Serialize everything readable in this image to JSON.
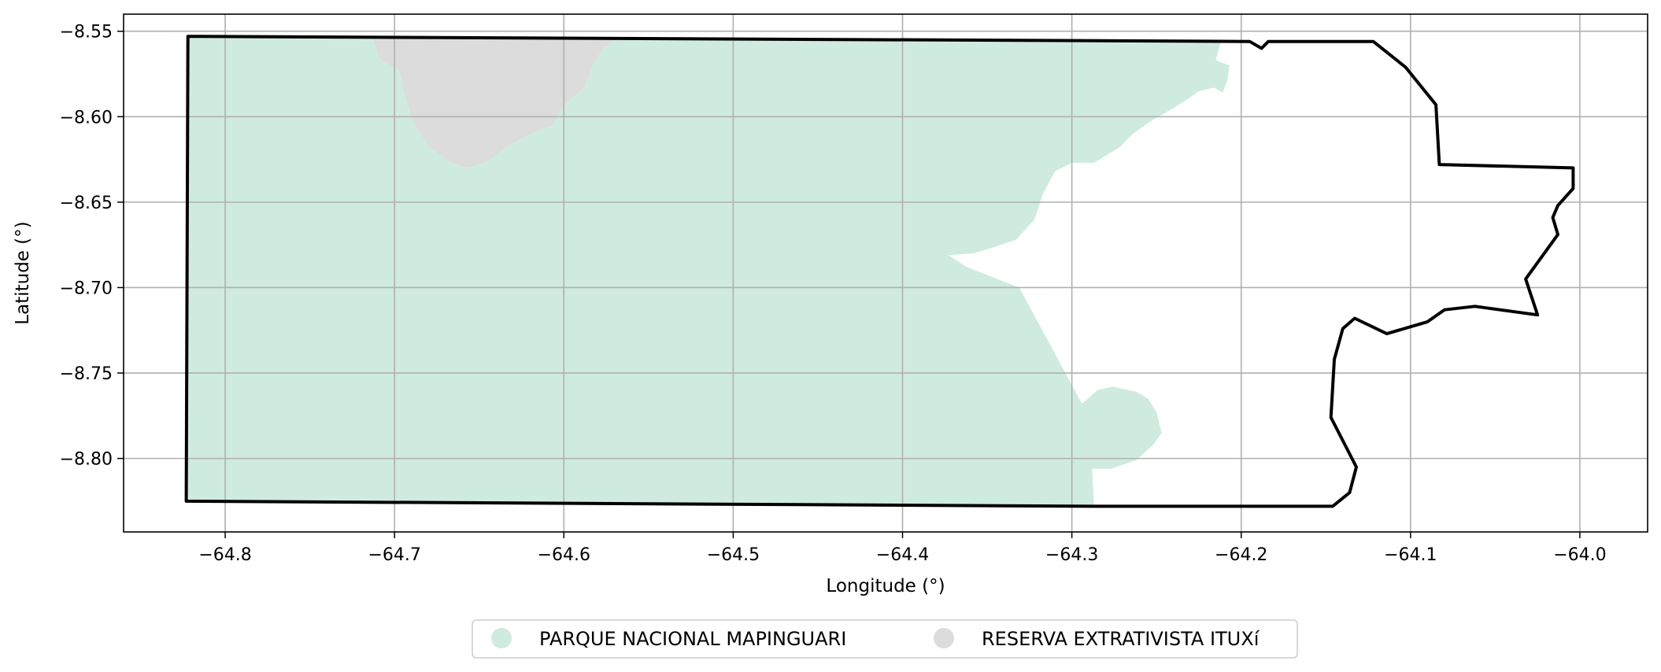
{
  "map": {
    "xlabel": "Longitude (°)",
    "ylabel": "Latitude (°)",
    "xlim": [
      -64.86,
      -63.96
    ],
    "ylim": [
      -8.843,
      -8.54
    ],
    "x_ticks": [
      -64.8,
      -64.7,
      -64.6,
      -64.5,
      -64.4,
      -64.3,
      -64.2,
      -64.1,
      -64.0
    ],
    "x_tick_labels": [
      "−64.8",
      "−64.7",
      "−64.6",
      "−64.5",
      "−64.4",
      "−64.3",
      "−64.2",
      "−64.1",
      "−64.0"
    ],
    "y_ticks": [
      -8.55,
      -8.6,
      -8.65,
      -8.7,
      -8.75,
      -8.8
    ],
    "y_tick_labels": [
      "−8.55",
      "−8.60",
      "−8.65",
      "−8.70",
      "−8.75",
      "−8.80"
    ],
    "grid": true,
    "colors": {
      "parque": "#cfebdf",
      "reserva": "#dcdcdc",
      "boundary": "#000000",
      "grid": "#b0b0b0"
    },
    "legend": {
      "placement": "bottom-center",
      "entries": [
        {
          "label": "PARQUE NACIONAL MAPINGUARI",
          "color": "#cfebdf"
        },
        {
          "label": "RESERVA EXTRATIVISTA ITUXí",
          "color": "#dcdcdc"
        }
      ]
    },
    "areas": {
      "parque": [
        [
          -64.822,
          -8.553
        ],
        [
          -64.212,
          -8.556
        ],
        [
          -64.215,
          -8.567
        ],
        [
          -64.207,
          -8.57
        ],
        [
          -64.208,
          -8.578
        ],
        [
          -64.211,
          -8.586
        ],
        [
          -64.216,
          -8.583
        ],
        [
          -64.225,
          -8.585
        ],
        [
          -64.232,
          -8.59
        ],
        [
          -64.24,
          -8.595
        ],
        [
          -64.254,
          -8.603
        ],
        [
          -64.264,
          -8.61
        ],
        [
          -64.272,
          -8.618
        ],
        [
          -64.287,
          -8.627
        ],
        [
          -64.3,
          -8.627
        ],
        [
          -64.31,
          -8.632
        ],
        [
          -64.317,
          -8.645
        ],
        [
          -64.322,
          -8.66
        ],
        [
          -64.333,
          -8.672
        ],
        [
          -64.348,
          -8.677
        ],
        [
          -64.358,
          -8.68
        ],
        [
          -64.373,
          -8.681
        ],
        [
          -64.362,
          -8.688
        ],
        [
          -64.331,
          -8.7
        ],
        [
          -64.294,
          -8.768
        ],
        [
          -64.285,
          -8.76
        ],
        [
          -64.276,
          -8.758
        ],
        [
          -64.262,
          -8.761
        ],
        [
          -64.255,
          -8.765
        ],
        [
          -64.25,
          -8.773
        ],
        [
          -64.247,
          -8.785
        ],
        [
          -64.252,
          -8.792
        ],
        [
          -64.262,
          -8.801
        ],
        [
          -64.277,
          -8.806
        ],
        [
          -64.288,
          -8.806
        ],
        [
          -64.287,
          -8.827
        ],
        [
          -64.823,
          -8.825
        ]
      ],
      "reserva": [
        [
          -64.712,
          -8.554
        ],
        [
          -64.569,
          -8.554
        ],
        [
          -64.577,
          -8.56
        ],
        [
          -64.583,
          -8.57
        ],
        [
          -64.588,
          -8.583
        ],
        [
          -64.599,
          -8.592
        ],
        [
          -64.607,
          -8.605
        ],
        [
          -64.62,
          -8.61
        ],
        [
          -64.633,
          -8.617
        ],
        [
          -64.645,
          -8.626
        ],
        [
          -64.657,
          -8.63
        ],
        [
          -64.668,
          -8.626
        ],
        [
          -64.68,
          -8.617
        ],
        [
          -64.689,
          -8.603
        ],
        [
          -64.694,
          -8.587
        ],
        [
          -64.697,
          -8.573
        ],
        [
          -64.709,
          -8.566
        ],
        [
          -64.712,
          -8.556
        ]
      ],
      "boundary": [
        [
          -64.822,
          -8.553
        ],
        [
          -64.195,
          -8.556
        ],
        [
          -64.188,
          -8.56
        ],
        [
          -64.184,
          -8.556
        ],
        [
          -64.122,
          -8.556
        ],
        [
          -64.103,
          -8.571
        ],
        [
          -64.085,
          -8.593
        ],
        [
          -64.083,
          -8.628
        ],
        [
          -64.004,
          -8.63
        ],
        [
          -64.004,
          -8.642
        ],
        [
          -64.013,
          -8.652
        ],
        [
          -64.016,
          -8.659
        ],
        [
          -64.013,
          -8.669
        ],
        [
          -64.032,
          -8.695
        ],
        [
          -64.025,
          -8.716
        ],
        [
          -64.062,
          -8.711
        ],
        [
          -64.08,
          -8.713
        ],
        [
          -64.09,
          -8.72
        ],
        [
          -64.114,
          -8.727
        ],
        [
          -64.133,
          -8.718
        ],
        [
          -64.14,
          -8.724
        ],
        [
          -64.145,
          -8.742
        ],
        [
          -64.147,
          -8.776
        ],
        [
          -64.132,
          -8.805
        ],
        [
          -64.136,
          -8.82
        ],
        [
          -64.146,
          -8.828
        ],
        [
          -64.288,
          -8.828
        ],
        [
          -64.823,
          -8.825
        ]
      ]
    }
  }
}
